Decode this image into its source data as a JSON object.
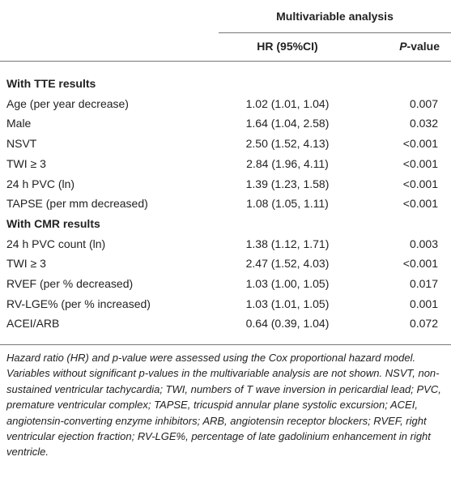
{
  "table": {
    "group_header": "Multivariable analysis",
    "columns": {
      "hr": "HR (95%CI)",
      "p_italic": "P",
      "p_rest": "-value"
    },
    "sections": [
      {
        "title": "With TTE results",
        "rows": [
          [
            "Age (per year decrease)",
            "1.02 (1.01, 1.04)",
            "0.007"
          ],
          [
            "Male",
            "1.64 (1.04, 2.58)",
            "0.032"
          ],
          [
            "NSVT",
            "2.50 (1.52, 4.13)",
            "<0.001"
          ],
          [
            "TWI ≥ 3",
            "2.84 (1.96, 4.11)",
            "<0.001"
          ],
          [
            "24 h PVC (ln)",
            "1.39 (1.23, 1.58)",
            "<0.001"
          ],
          [
            "TAPSE (per mm decreased)",
            "1.08 (1.05, 1.11)",
            "<0.001"
          ]
        ]
      },
      {
        "title": "With CMR results",
        "rows": [
          [
            "24 h PVC count (ln)",
            "1.38 (1.12, 1.71)",
            "0.003"
          ],
          [
            "TWI ≥ 3",
            "2.47 (1.52, 4.03)",
            "<0.001"
          ],
          [
            "RVEF (per % decreased)",
            "1.03 (1.00, 1.05)",
            "0.017"
          ],
          [
            "RV-LGE% (per % increased)",
            "1.03 (1.01, 1.05)",
            "0.001"
          ],
          [
            "ACEI/ARB",
            "0.64 (0.39, 1.04)",
            "0.072"
          ]
        ]
      }
    ],
    "footnote": "Hazard ratio (HR) and p-value were assessed using the Cox proportional hazard model. Variables without significant p-values in the multivariable analysis are not shown. NSVT, non-sustained ventricular tachycardia; TWI, numbers of T wave inversion in pericardial lead; PVC, premature ventricular complex; TAPSE, tricuspid annular plane systolic excursion; ACEI, angiotensin-converting enzyme inhibitors; ARB, angiotensin receptor blockers; RVEF, right ventricular ejection fraction; RV-LGE%, percentage of late gadolinium enhancement in right ventricle."
  }
}
